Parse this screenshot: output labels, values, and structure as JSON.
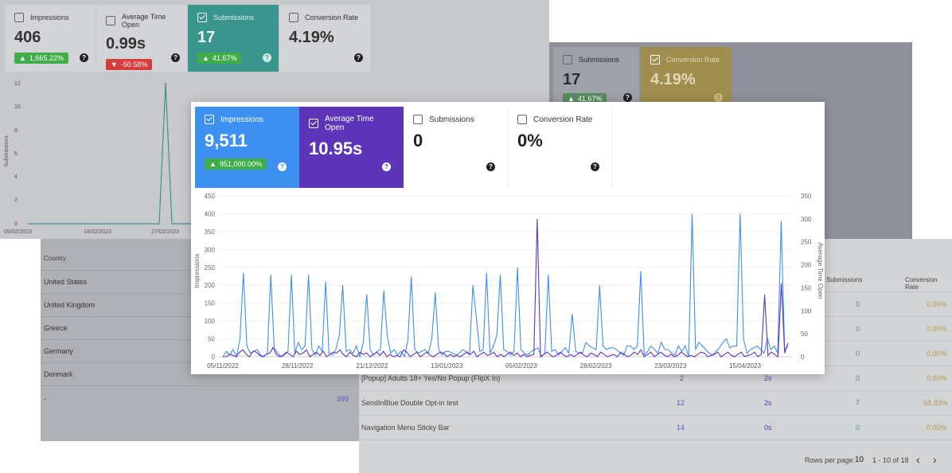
{
  "bg_top_left": {
    "cards": [
      {
        "label": "Impressions",
        "value": "406",
        "change": "1,665.22%",
        "dir": "up"
      },
      {
        "label": "Average Time Open",
        "value": "0.99s",
        "change": "-50.58%",
        "dir": "down"
      },
      {
        "label": "Submissions",
        "value": "17",
        "change": "41.67%",
        "dir": "up"
      },
      {
        "label": "Conversion Rate",
        "value": "4.19%",
        "change": "",
        "dir": ""
      }
    ],
    "y_label": "Submissions",
    "y_ticks": [
      "12",
      "10",
      "8",
      "6",
      "4",
      "2",
      "0"
    ],
    "x_ticks": [
      "05/02/2023",
      "18/02/2023",
      "27/02/2023"
    ]
  },
  "bg_top_right": {
    "cards": [
      {
        "label": "Submissions",
        "value": "17",
        "change": "41.67%"
      },
      {
        "label": "Conversion Rate",
        "value": "4.19%"
      }
    ]
  },
  "country_table": {
    "header": "Country",
    "rows": [
      "United States",
      "United Kingdom",
      "Greece",
      "Germany",
      "Denmark",
      "-"
    ],
    "last_value": "399"
  },
  "popup_table": {
    "headers": {
      "submissions": "Submissions",
      "conversion": "Conversion Rate"
    },
    "top_rows": [
      {
        "submissions": "0",
        "conversion": "0.00%"
      },
      {
        "submissions": "0",
        "conversion": "0.00%"
      },
      {
        "submissions": "0",
        "conversion": "0.00%"
      }
    ],
    "rows": [
      {
        "name": "[Popup] Adults 18+ Yes/No Popup (FlipX In)",
        "impressions": "2",
        "time": "2s",
        "submissions": "0",
        "conversion": "0.00%"
      },
      {
        "name": "SendInBlue Double Opt-in test",
        "impressions": "12",
        "time": "2s",
        "submissions": "7",
        "conversion": "58.33%"
      },
      {
        "name": "Navigation Menu Sticky Bar",
        "impressions": "14",
        "time": "0s",
        "submissions": "0",
        "conversion": "0.00%"
      }
    ],
    "pagination": {
      "rows_label": "Rows per page:",
      "rows_value": "10",
      "range": "1 - 10 of 18"
    }
  },
  "main": {
    "cards": [
      {
        "label": "Impressions",
        "value": "9,511",
        "change": "951,000.00%",
        "color": "#3d8ff0"
      },
      {
        "label": "Average Time Open",
        "value": "10.95s",
        "color": "#5d35b8"
      },
      {
        "label": "Submissions",
        "value": "0"
      },
      {
        "label": "Conversion Rate",
        "value": "0%"
      }
    ],
    "colors": {
      "impressions": "#3d8ff0",
      "time": "#5d35b8"
    }
  },
  "chart_data": {
    "type": "line",
    "x_ticks": [
      "05/11/2022",
      "28/11/2022",
      "21/12/2022",
      "13/01/2023",
      "05/02/2023",
      "28/02/2023",
      "23/03/2023",
      "15/04/2023"
    ],
    "ylabel": "Impressions",
    "ylabel_right": "Average Time Open",
    "ylim": [
      0,
      450
    ],
    "ylim_right": [
      0,
      350
    ],
    "y_ticks": [
      0,
      50,
      100,
      150,
      200,
      250,
      300,
      350,
      400,
      450
    ],
    "y_ticks_right": [
      0,
      50,
      100,
      150,
      200,
      250,
      300,
      350
    ],
    "series": [
      {
        "name": "Impressions",
        "color": "#3d8ff0",
        "values": [
          0,
          15,
          5,
          20,
          0,
          50,
          235,
          30,
          10,
          15,
          20,
          5,
          0,
          10,
          230,
          25,
          10,
          0,
          5,
          15,
          230,
          10,
          40,
          20,
          30,
          230,
          20,
          5,
          30,
          15,
          210,
          10,
          5,
          20,
          60,
          200,
          15,
          20,
          10,
          30,
          0,
          40,
          175,
          20,
          5,
          15,
          20,
          185,
          60,
          10,
          20,
          5,
          15,
          0,
          45,
          225,
          20,
          10,
          15,
          20,
          10,
          50,
          180,
          20,
          5,
          15,
          15,
          10,
          5,
          10,
          20,
          15,
          5,
          200,
          110,
          15,
          20,
          235,
          10,
          30,
          60,
          230,
          20,
          15,
          5,
          15,
          250,
          20,
          10,
          5,
          15,
          20,
          25,
          0,
          10,
          230,
          15,
          20,
          5,
          15,
          25,
          10,
          120,
          15,
          10,
          10,
          40,
          30,
          25,
          20,
          200,
          30,
          20,
          25,
          25,
          20,
          10,
          5,
          30,
          30,
          20,
          30,
          240,
          5,
          15,
          30,
          20,
          10,
          40,
          20,
          20,
          10,
          5,
          30,
          15,
          30,
          0,
          400,
          20,
          40,
          30,
          20,
          10,
          5,
          15,
          25,
          40,
          50,
          25,
          30,
          30,
          400,
          50,
          10,
          20,
          25,
          30,
          20,
          10,
          50,
          20,
          30,
          10,
          380,
          20,
          30
        ]
      },
      {
        "name": "Average Time Open",
        "color": "#5d35b8",
        "values": [
          0,
          0,
          5,
          3,
          0,
          10,
          15,
          5,
          0,
          12,
          10,
          3,
          0,
          5,
          8,
          20,
          5,
          0,
          3,
          10,
          5,
          0,
          12,
          5,
          8,
          15,
          0,
          5,
          10,
          3,
          12,
          0,
          5,
          10,
          8,
          15,
          5,
          0,
          10,
          3,
          0,
          10,
          5,
          8,
          0,
          5,
          10,
          3,
          12,
          0,
          5,
          0,
          3,
          0,
          15,
          10,
          0,
          5,
          10,
          0,
          5,
          10,
          3,
          0,
          5,
          10,
          8,
          0,
          5,
          0,
          3,
          0,
          5,
          10,
          5,
          12,
          0,
          5,
          10,
          3,
          5,
          10,
          0,
          5,
          0,
          5,
          10,
          3,
          8,
          0,
          5,
          0,
          3,
          5,
          300,
          0,
          5,
          10,
          3,
          0,
          5,
          10,
          3,
          0,
          5,
          0,
          5,
          10,
          3,
          0,
          8,
          5,
          0,
          10,
          5,
          0,
          3,
          5,
          0,
          10,
          5,
          0,
          3,
          10,
          5,
          15,
          0,
          5,
          10,
          0,
          5,
          10,
          3,
          0,
          5,
          0,
          3,
          10,
          5,
          0,
          3,
          0,
          5,
          10,
          8,
          0,
          3,
          5,
          10,
          0,
          5,
          10,
          3,
          0,
          5,
          10,
          0,
          3,
          5,
          10,
          0,
          5,
          135,
          3,
          10,
          5,
          0,
          160,
          8,
          30
        ]
      }
    ]
  }
}
